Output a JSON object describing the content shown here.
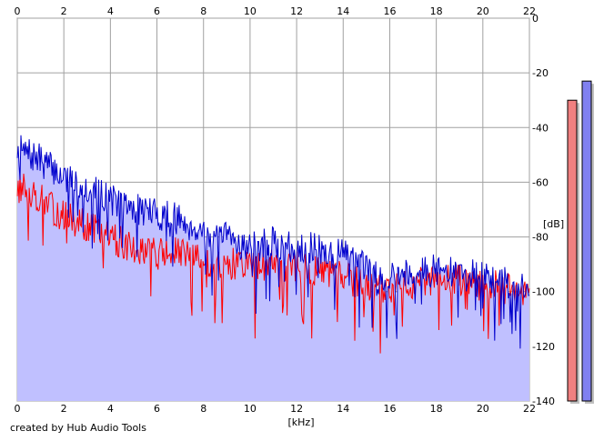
{
  "chart_data": {
    "type": "area",
    "xlabel": "[kHz]",
    "ylabel": "[dB]",
    "xlim": [
      0,
      22
    ],
    "ylim": [
      -140,
      0
    ],
    "x_ticks": [
      "0",
      "2",
      "4",
      "6",
      "8",
      "10",
      "12",
      "14",
      "16",
      "18",
      "20",
      "22"
    ],
    "y_ticks": [
      "0",
      "-20",
      "-40",
      "-60",
      "-80",
      "-100",
      "-120",
      "-140"
    ],
    "grid": true,
    "series": [
      {
        "color": "#0000cc",
        "fill": "#c0c0ff",
        "x": [
          0,
          0.5,
          1,
          1.5,
          2,
          2.5,
          3,
          3.5,
          4,
          4.5,
          5,
          5.5,
          6,
          6.5,
          7,
          7.5,
          8,
          8.5,
          9,
          9.5,
          10,
          10.5,
          11,
          11.5,
          12,
          12.5,
          13,
          13.5,
          14,
          14.5,
          15,
          15.5,
          16,
          16.5,
          17,
          17.5,
          18,
          18.5,
          19,
          19.5,
          20,
          20.5,
          21,
          21.5,
          22
        ],
        "values": [
          -48,
          -50,
          -52,
          -55,
          -58,
          -60,
          -62,
          -64,
          -66,
          -68,
          -70,
          -70,
          -72,
          -72,
          -74,
          -76,
          -78,
          -82,
          -80,
          -82,
          -84,
          -83,
          -82,
          -84,
          -83,
          -84,
          -85,
          -86,
          -86,
          -88,
          -92,
          -95,
          -94,
          -93,
          -93,
          -93,
          -92,
          -93,
          -94,
          -94,
          -95,
          -96,
          -97,
          -98,
          -100
        ]
      },
      {
        "color": "#ff0000",
        "x": [
          0,
          0.5,
          1,
          1.5,
          2,
          2.5,
          3,
          3.5,
          4,
          4.5,
          5,
          5.5,
          6,
          6.5,
          7,
          7.5,
          8,
          8.5,
          9,
          9.5,
          10,
          10.5,
          11,
          11.5,
          12,
          12.5,
          13,
          13.5,
          14,
          14.5,
          15,
          15.5,
          16,
          16.5,
          17,
          17.5,
          18,
          18.5,
          19,
          19.5,
          20,
          20.5,
          21,
          21.5,
          22
        ],
        "values": [
          -62,
          -63,
          -66,
          -70,
          -72,
          -74,
          -76,
          -78,
          -80,
          -82,
          -84,
          -84,
          -86,
          -86,
          -86,
          -88,
          -88,
          -92,
          -90,
          -90,
          -90,
          -90,
          -90,
          -91,
          -91,
          -92,
          -93,
          -94,
          -95,
          -96,
          -98,
          -99,
          -99,
          -98,
          -97,
          -97,
          -96,
          -96,
          -96,
          -97,
          -98,
          -98,
          -99,
          -100,
          -102
        ]
      }
    ],
    "level_meters": {
      "scale_min": -140,
      "scale_max": 0,
      "left_db": -30,
      "right_db": -23,
      "left_color": "#f08080",
      "right_color": "#8080f0"
    }
  },
  "footer": {
    "credit": "created by Hub Audio Tools"
  }
}
